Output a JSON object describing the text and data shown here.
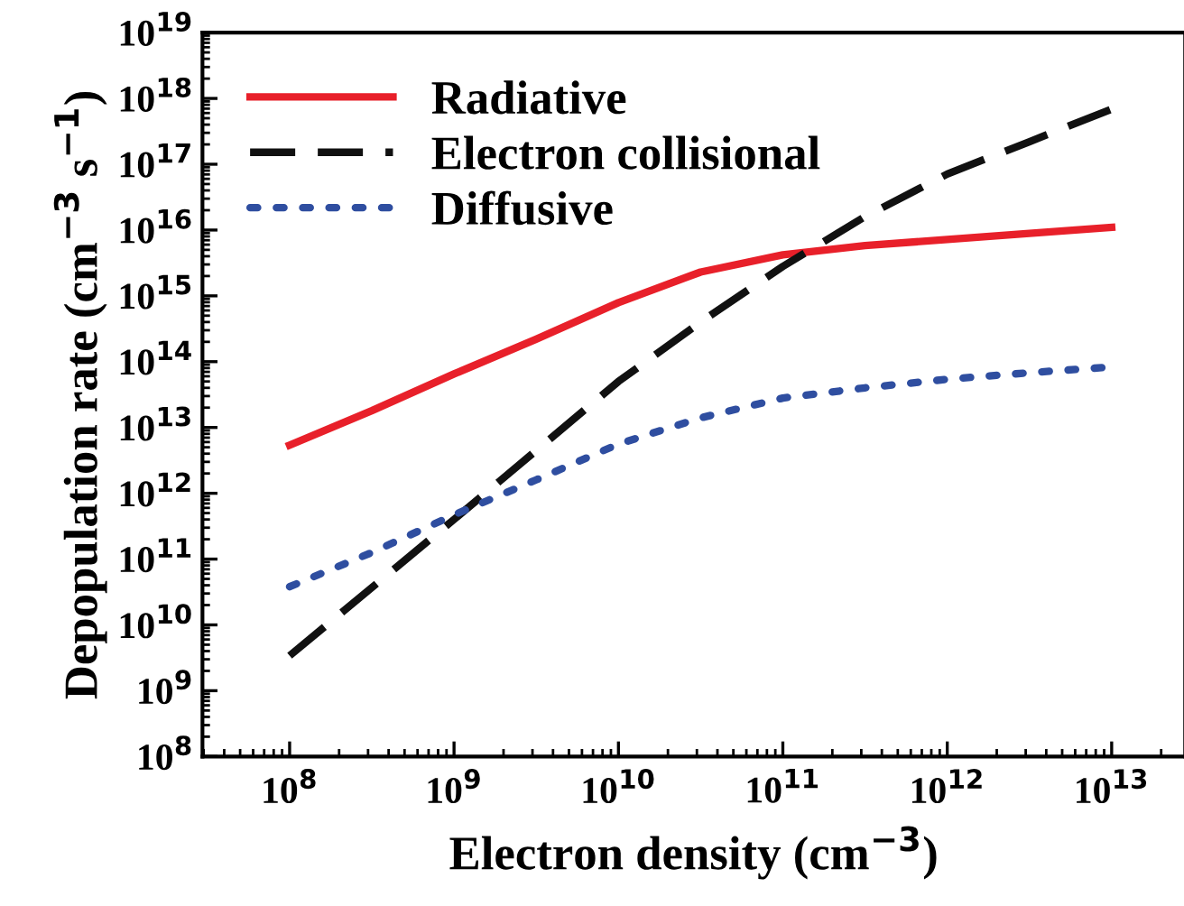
{
  "chart_data": {
    "type": "line",
    "xlabel": "Electron density (cm$^{−3}$)",
    "ylabel": "Depopulation rate (cm$^{−3}$ s$^{−1}$)",
    "log": "xy",
    "legend": "top left",
    "grid": false,
    "marker": "none",
    "xlim": [
      29500000.0,
      28000000000000.0
    ],
    "xticks": [
      {
        "value": 100000000.0,
        "label": "10$^{8}$"
      },
      {
        "value": 1000000000.0,
        "label": "10$^{9}$"
      },
      {
        "value": 10000000000.0,
        "label": "10$^{10}$"
      },
      {
        "value": 100000000000.0,
        "label": "10$^{11}$"
      },
      {
        "value": 1000000000000.0,
        "label": "10$^{12}$"
      },
      {
        "value": 10000000000000.0,
        "label": "10$^{13}$"
      }
    ],
    "ylim": [
      100000000.0,
      1e+19
    ],
    "yticks": [
      {
        "value": 100000000.0,
        "label": "10$^{8}$"
      },
      {
        "value": 1000000000.0,
        "label": "10$^{9}$"
      },
      {
        "value": 10000000000.0,
        "label": "10$^{10}$"
      },
      {
        "value": 100000000000.0,
        "label": "10$^{11}$"
      },
      {
        "value": 1000000000000.0,
        "label": "10$^{12}$"
      },
      {
        "value": 10000000000000.0,
        "label": "10$^{13}$"
      },
      {
        "value": 100000000000000.0,
        "label": "10$^{14}$"
      },
      {
        "value": 1000000000000000.0,
        "label": "10$^{15}$"
      },
      {
        "value": 1e+16,
        "label": "10$^{16}$"
      },
      {
        "value": 1e+17,
        "label": "10$^{17}$"
      },
      {
        "value": 1e+18,
        "label": "10$^{18}$"
      },
      {
        "value": 1e+19,
        "label": "10$^{19}$"
      }
    ],
    "series": [
      {
        "name": "Radiative",
        "color": "#e8202a",
        "line_style": "solid",
        "x": [
          100000000.0,
          316000000.0,
          1000000000.0,
          3160000000.0,
          10000000000.0,
          31600000000.0,
          100000000000.0,
          316000000000.0,
          1000000000000.0,
          3160000000000.0,
          10000000000000.0
        ],
        "values": [
          5400000000000.0,
          18000000000000.0,
          65000000000000.0,
          220000000000000.0,
          790000000000000.0,
          2300000000000000.0,
          4200000000000000.0,
          5800000000000000.0,
          7200000000000000.0,
          8900000000000000.0,
          1.1e+16
        ]
      },
      {
        "name": "Electron collisional",
        "color": "#111111",
        "line_style": "dashed",
        "x": [
          100000000.0,
          1000000000.0,
          10000000000.0,
          31600000000.0,
          100000000000.0,
          316000000000.0,
          1000000000000.0,
          3160000000000.0,
          10000000000000.0
        ],
        "values": [
          3400000000.0,
          400000000000.0,
          50000000000000.0,
          400000000000000.0,
          2800000000000000.0,
          1.6e+16,
          7.1e+16,
          2.2e+17,
          6.9e+17
        ]
      },
      {
        "name": "Diffusive",
        "color": "#2f4ea0",
        "line_style": "dotted",
        "x": [
          100000000.0,
          316000000.0,
          1000000000.0,
          3160000000.0,
          10000000000.0,
          31600000000.0,
          100000000000.0,
          316000000000.0,
          1000000000000.0,
          3160000000000.0,
          10000000000000.0
        ],
        "values": [
          38000000000.0,
          126000000000.0,
          470000000000.0,
          1600000000000.0,
          5600000000000.0,
          14000000000000.0,
          28000000000000.0,
          40000000000000.0,
          54000000000000.0,
          68000000000000.0,
          83000000000000.0
        ]
      }
    ]
  }
}
